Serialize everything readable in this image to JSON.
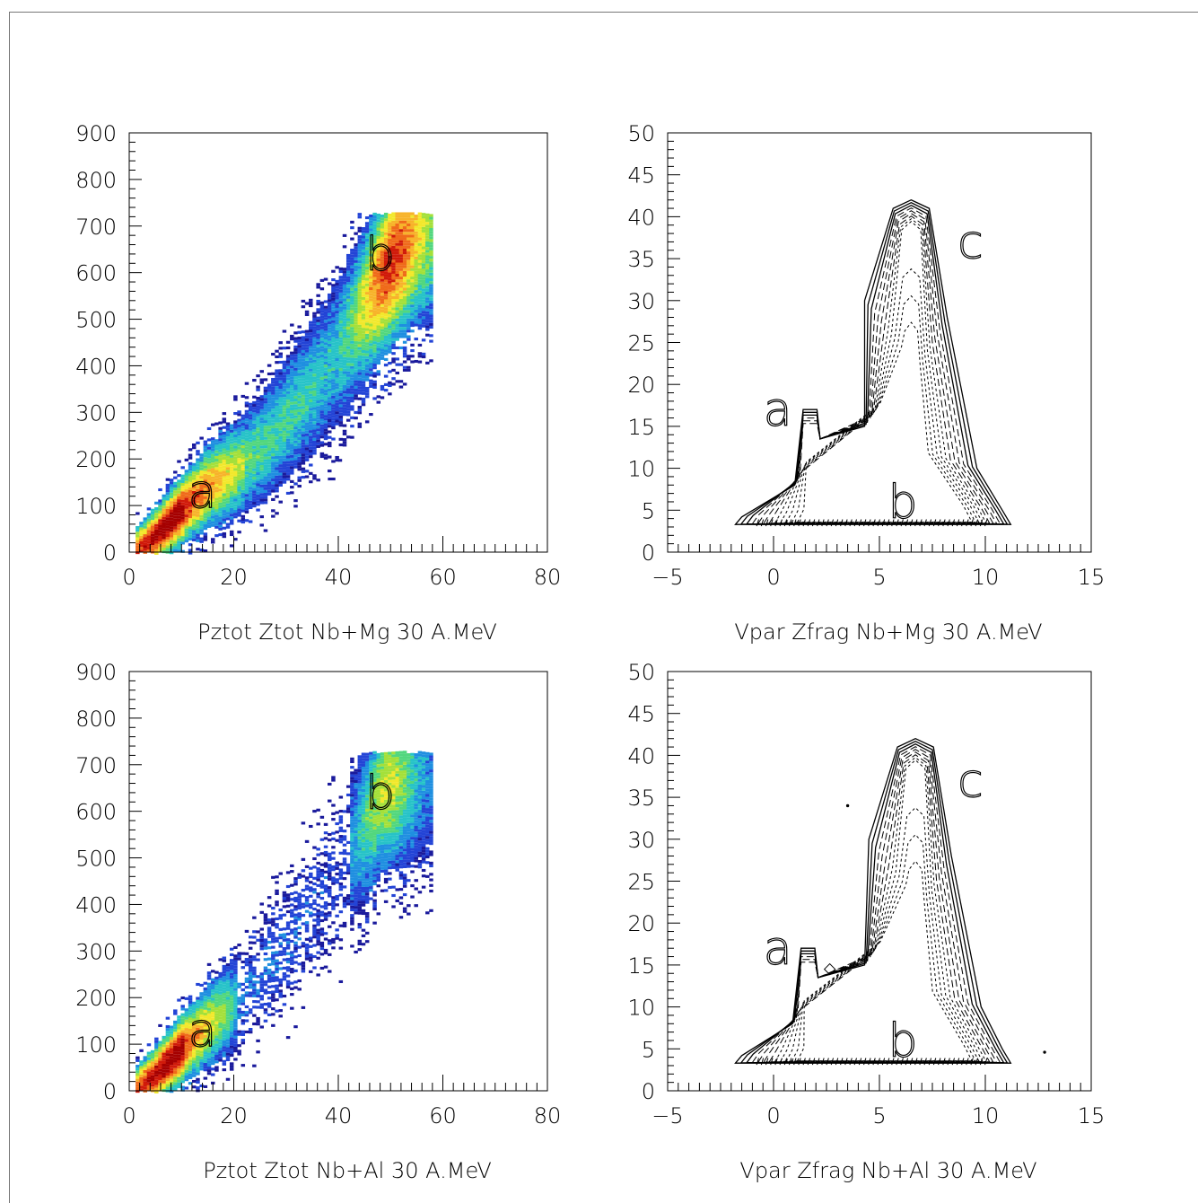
{
  "colors": {
    "axis": "#000000",
    "palette": [
      "#1a1a9c",
      "#2344d6",
      "#1f8fe0",
      "#27c3c8",
      "#52d77e",
      "#a4e03a",
      "#f2e82c",
      "#f7b32a",
      "#ef6a1a",
      "#d01a0a",
      "#a50000"
    ]
  },
  "chart_data": [
    {
      "id": "p1",
      "type": "heatmap",
      "title": "Pztot Ztot Nb+Mg 30 A.MeV",
      "xlim": [
        0,
        80
      ],
      "ylim": [
        0,
        900
      ],
      "xticks": [
        "0",
        "20",
        "40",
        "60",
        "80"
      ],
      "yticks": [
        "0",
        "100",
        "200",
        "300",
        "400",
        "500",
        "600",
        "700",
        "800",
        "900"
      ],
      "annotations": [
        {
          "text": "a",
          "x": 14,
          "y": 130
        },
        {
          "text": "b",
          "x": 48,
          "y": 640
        }
      ],
      "regions": [
        {
          "label": "a",
          "ridge": [
            [
              1,
              5
            ],
            [
              5,
              40
            ],
            [
              10,
              95
            ],
            [
              15,
              145
            ],
            [
              20,
              180
            ],
            [
              25,
              225
            ],
            [
              30,
              290
            ],
            [
              35,
              360
            ],
            [
              40,
              440
            ],
            [
              45,
              540
            ],
            [
              50,
              630
            ],
            [
              54,
              680
            ],
            [
              58,
              690
            ]
          ],
          "peak_x": 8,
          "peak_level": 1.0
        },
        {
          "label": "b",
          "center": [
            49,
            640
          ],
          "level": 0.72
        }
      ]
    },
    {
      "id": "p2",
      "type": "contour",
      "title": "Vpar Zfrag Nb+Mg 30 A.MeV",
      "xlim": [
        -5,
        15
      ],
      "ylim": [
        0,
        50
      ],
      "xticks": [
        "-5",
        "0",
        "5",
        "10",
        "15"
      ],
      "yticks": [
        "0",
        "5",
        "10",
        "15",
        "20",
        "25",
        "30",
        "35",
        "40",
        "45",
        "50"
      ],
      "annotations": [
        {
          "text": "a",
          "x": 0.2,
          "y": 17
        },
        {
          "text": "b",
          "x": 6.1,
          "y": 6
        },
        {
          "text": "c",
          "x": 9.3,
          "y": 37
        }
      ],
      "peak": {
        "x": 6.5,
        "y": 42
      },
      "side_peak": {
        "x": 1.8,
        "y": 17
      }
    },
    {
      "id": "p3",
      "type": "heatmap",
      "title": "Pztot Ztot Nb+Al 30 A.MeV",
      "xlim": [
        0,
        80
      ],
      "ylim": [
        0,
        900
      ],
      "xticks": [
        "0",
        "20",
        "40",
        "60",
        "80"
      ],
      "yticks": [
        "0",
        "100",
        "200",
        "300",
        "400",
        "500",
        "600",
        "700",
        "800",
        "900"
      ],
      "annotations": [
        {
          "text": "a",
          "x": 14,
          "y": 130
        },
        {
          "text": "b",
          "x": 48,
          "y": 640
        }
      ],
      "regions": [
        {
          "label": "a",
          "ridge": [
            [
              1,
              5
            ],
            [
              5,
              40
            ],
            [
              10,
              95
            ],
            [
              15,
              145
            ],
            [
              20,
              190
            ],
            [
              25,
              250
            ],
            [
              30,
              320
            ],
            [
              35,
              400
            ],
            [
              40,
              480
            ],
            [
              45,
              580
            ],
            [
              48,
              650
            ],
            [
              54,
              680
            ],
            [
              58,
              690
            ]
          ],
          "peak_x": 8,
          "peak_level": 1.0
        },
        {
          "label": "b",
          "center": [
            49,
            640
          ],
          "level": 0.5
        }
      ]
    },
    {
      "id": "p4",
      "type": "contour",
      "title": "Vpar Zfrag Nb+Al 30 A.MeV",
      "xlim": [
        -5,
        15
      ],
      "ylim": [
        0,
        50
      ],
      "xticks": [
        "-5",
        "0",
        "5",
        "10",
        "15"
      ],
      "yticks": [
        "0",
        "5",
        "10",
        "15",
        "20",
        "25",
        "30",
        "35",
        "40",
        "45",
        "50"
      ],
      "annotations": [
        {
          "text": "a",
          "x": 0.2,
          "y": 17
        },
        {
          "text": "b",
          "x": 6.1,
          "y": 6
        },
        {
          "text": "c",
          "x": 9.3,
          "y": 37
        }
      ],
      "peak": {
        "x": 6.7,
        "y": 42
      },
      "side_peak": {
        "x": 1.7,
        "y": 17
      }
    }
  ]
}
